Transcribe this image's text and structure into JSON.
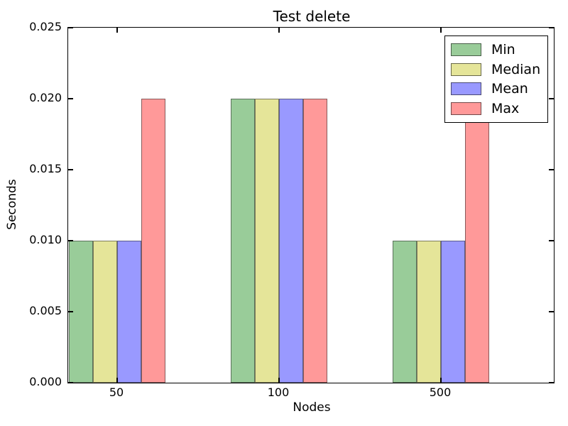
{
  "chart_data": {
    "type": "bar",
    "title": "Test delete",
    "xlabel": "Nodes",
    "ylabel": "Seconds",
    "categories": [
      "50",
      "100",
      "500"
    ],
    "series": [
      {
        "name": "Min",
        "values": [
          0.01,
          0.02,
          0.01
        ]
      },
      {
        "name": "Median",
        "values": [
          0.01,
          0.02,
          0.01
        ]
      },
      {
        "name": "Mean",
        "values": [
          0.01,
          0.02,
          0.01
        ]
      },
      {
        "name": "Max",
        "values": [
          0.02,
          0.02,
          0.02
        ]
      }
    ],
    "ylim": [
      0,
      0.025
    ],
    "yticks": [
      "0.000",
      "0.005",
      "0.010",
      "0.015",
      "0.020",
      "0.025"
    ],
    "colors": [
      "#99cc99",
      "#e5e599",
      "#9999ff",
      "#ff9999"
    ],
    "bar_edge": "rgba(40,40,40,0.55)",
    "legend_position": "upper right",
    "grid": false
  }
}
